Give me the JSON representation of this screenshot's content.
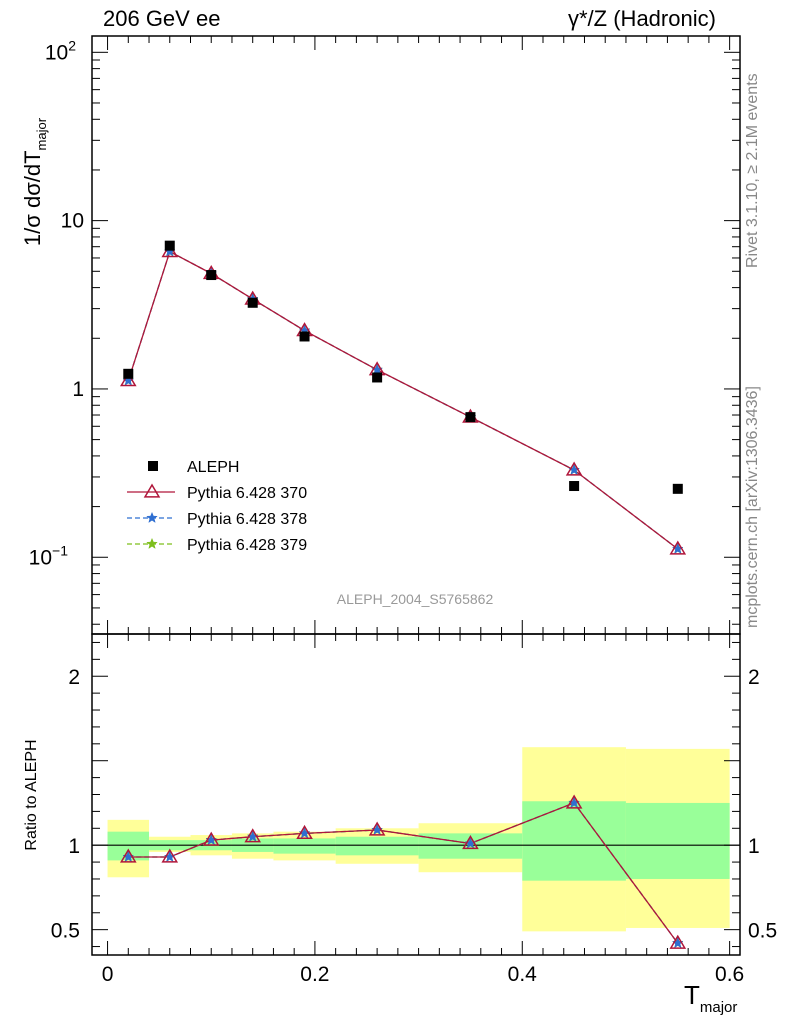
{
  "header": {
    "left": "206 GeV ee",
    "right": "γ*/Z (Hadronic)"
  },
  "side_text": {
    "rivet": "Rivet 3.1.10, ≥ 2.1M events",
    "mcplots": "mcplots.cern.ch [arXiv:1306.3436]"
  },
  "watermark": "ALEPH_2004_S5765862",
  "axes": {
    "main_ylabel": "1/σ  dσ/dT",
    "main_ylabel_sub": "major",
    "ratio_ylabel": "Ratio to ALEPH",
    "xlabel": "T",
    "xlabel_sub": "major",
    "main_yticks": [
      {
        "value": 0.1,
        "label": "10",
        "sup": "−1"
      },
      {
        "value": 1,
        "label": "1",
        "sup": ""
      },
      {
        "value": 10,
        "label": "10",
        "sup": ""
      },
      {
        "value": 100,
        "label": "10",
        "sup": "2"
      }
    ],
    "ratio_yticks": [
      {
        "value": 0.5,
        "label": "0.5"
      },
      {
        "value": 1,
        "label": "1"
      },
      {
        "value": 2,
        "label": "2"
      }
    ],
    "xticks": [
      {
        "value": 0,
        "label": "0"
      },
      {
        "value": 0.2,
        "label": "0.2"
      },
      {
        "value": 0.4,
        "label": "0.4"
      },
      {
        "value": 0.6,
        "label": "0.6"
      }
    ]
  },
  "chart_data": {
    "type": "line",
    "xlim": [
      -0.015,
      0.61
    ],
    "main": {
      "yscale": "log",
      "ylim": [
        0.035,
        125
      ],
      "bins": [
        [
          0.0,
          0.04
        ],
        [
          0.04,
          0.08
        ],
        [
          0.08,
          0.12
        ],
        [
          0.12,
          0.16
        ],
        [
          0.16,
          0.22
        ],
        [
          0.22,
          0.3
        ],
        [
          0.3,
          0.4
        ],
        [
          0.4,
          0.5
        ],
        [
          0.5,
          0.6
        ]
      ],
      "x": [
        0.02,
        0.06,
        0.1,
        0.14,
        0.19,
        0.26,
        0.35,
        0.45,
        0.55
      ],
      "data": {
        "name": "ALEPH",
        "values": [
          1.23,
          7.1,
          4.75,
          3.25,
          2.05,
          1.17,
          0.68,
          0.265,
          0.255
        ]
      },
      "series": [
        {
          "name": "Pythia 6.428 370",
          "color": "#b0163a",
          "style": "solid",
          "marker": "triangle",
          "values": [
            1.12,
            6.55,
            4.85,
            3.42,
            2.22,
            1.3,
            0.68,
            0.33,
            0.112
          ]
        },
        {
          "name": "Pythia 6.428 378",
          "color": "#2f6fd1",
          "style": "dashed",
          "marker": "star",
          "values": [
            1.12,
            6.55,
            4.85,
            3.42,
            2.22,
            1.3,
            0.68,
            0.33,
            0.112
          ]
        },
        {
          "name": "Pythia 6.428 379",
          "color": "#7dbf1c",
          "style": "dashed",
          "marker": "star",
          "values": [
            1.12,
            6.55,
            4.85,
            3.42,
            2.22,
            1.3,
            0.68,
            0.33,
            0.112
          ]
        }
      ],
      "legend": "middle-left"
    },
    "ratio": {
      "ylim": [
        0.35,
        2.25
      ],
      "reference": 1,
      "bands": [
        {
          "x0": 0.0,
          "x1": 0.04,
          "outer": [
            0.81,
            1.15
          ],
          "inner": [
            0.91,
            1.08
          ]
        },
        {
          "x0": 0.04,
          "x1": 0.08,
          "outer": [
            0.96,
            1.05
          ],
          "inner": [
            0.97,
            1.03
          ]
        },
        {
          "x0": 0.08,
          "x1": 0.12,
          "outer": [
            0.94,
            1.06
          ],
          "inner": [
            0.97,
            1.03
          ]
        },
        {
          "x0": 0.12,
          "x1": 0.16,
          "outer": [
            0.92,
            1.07
          ],
          "inner": [
            0.96,
            1.04
          ]
        },
        {
          "x0": 0.16,
          "x1": 0.22,
          "outer": [
            0.91,
            1.08
          ],
          "inner": [
            0.95,
            1.04
          ]
        },
        {
          "x0": 0.22,
          "x1": 0.3,
          "outer": [
            0.89,
            1.1
          ],
          "inner": [
            0.94,
            1.05
          ]
        },
        {
          "x0": 0.3,
          "x1": 0.4,
          "outer": [
            0.84,
            1.13
          ],
          "inner": [
            0.92,
            1.07
          ]
        },
        {
          "x0": 0.4,
          "x1": 0.5,
          "outer": [
            0.49,
            1.58
          ],
          "inner": [
            0.79,
            1.26
          ]
        },
        {
          "x0": 0.5,
          "x1": 0.6,
          "outer": [
            0.51,
            1.57
          ],
          "inner": [
            0.8,
            1.25
          ]
        }
      ],
      "series": [
        {
          "name": "Pythia 6.428 370",
          "values": [
            0.93,
            0.93,
            1.03,
            1.05,
            1.07,
            1.09,
            1.01,
            1.25,
            0.42
          ]
        },
        {
          "name": "Pythia 6.428 378",
          "values": [
            0.93,
            0.93,
            1.03,
            1.05,
            1.07,
            1.09,
            1.01,
            1.25,
            0.42
          ]
        },
        {
          "name": "Pythia 6.428 379",
          "values": [
            0.93,
            0.93,
            1.03,
            1.05,
            1.07,
            1.09,
            1.01,
            1.25,
            0.42
          ]
        }
      ]
    }
  }
}
